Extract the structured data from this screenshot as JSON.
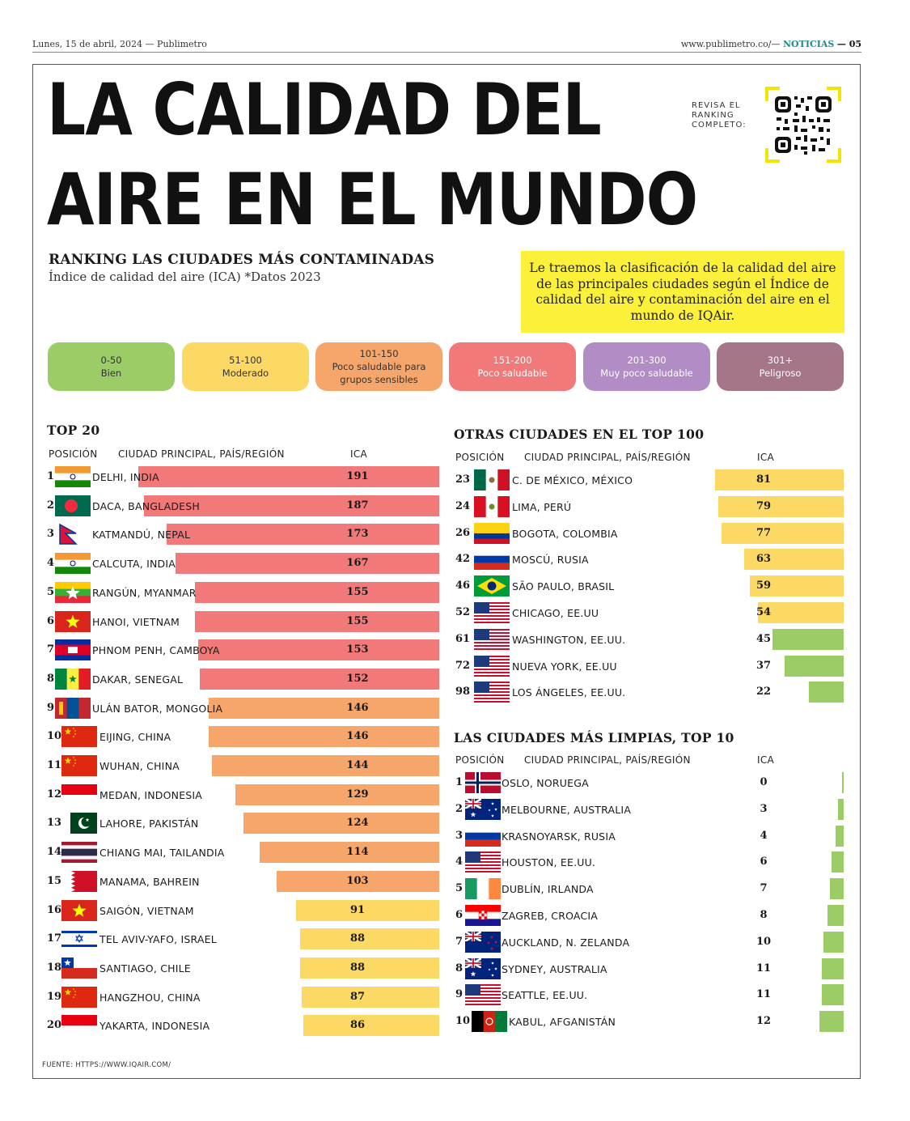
{
  "masthead": {
    "left": "Lunes, 15 de abril, 2024 — Publimetro",
    "url": "www.publimetro.co/—",
    "section": "NOTICIAS",
    "page": "— 05"
  },
  "title": {
    "line1": "LA CALIDAD DEL",
    "line2": "AIRE EN EL MUNDO"
  },
  "qr_label": "REVISA EL RANKING COMPLETO:",
  "subtitle": "RANKING LAS CIUDADES MÁS CONTAMINADAS",
  "subtitle2": "Índice de calidad del aire (ICA) *Datos 2023",
  "intro": "Le traemos la clasificación de la calidad del aire de las principales ciudades según el Índice de calidad del aire y contaminación del aire en el mundo de IQAir.",
  "colors": {
    "bien": "#9ccc65",
    "moderado": "#fcd964",
    "sensibles": "#f6a66a",
    "poco": "#f27979",
    "muy": "#b28cc4",
    "peligroso": "#a57689",
    "highlight": "#fbf03a"
  },
  "legend": [
    {
      "range": "0-50",
      "label": "Bien",
      "color": "#9ccc65",
      "text_color": "#333333"
    },
    {
      "range": "51-100",
      "label": "Moderado",
      "color": "#fcd964",
      "text_color": "#333333"
    },
    {
      "range": "101-150",
      "label": "Poco saludable para grupos sensibles",
      "color": "#f6a66a",
      "text_color": "#333333"
    },
    {
      "range": "151-200",
      "label": "Poco saludable",
      "color": "#f27979",
      "text_color": "#ffffff"
    },
    {
      "range": "201-300",
      "label": "Muy poco saludable",
      "color": "#b28cc4",
      "text_color": "#ffffff"
    },
    {
      "range": "301+",
      "label": "Peligroso",
      "color": "#a57689",
      "text_color": "#ffffff"
    }
  ],
  "source": "FUENTE: HTTPS://WWW.IQAIR.COM/",
  "chart_data": [
    {
      "type": "bar",
      "orientation": "horizontal",
      "title": "TOP 20",
      "headers": {
        "rank": "POSICIÓN",
        "city": "CIUDAD PRINCIPAL, PAÍS/REGIÓN",
        "value": "ICA"
      },
      "xlim": [
        0,
        200
      ],
      "rows": [
        {
          "rank": "1",
          "city": "DELHI, INDIA",
          "flag": "india",
          "value": 191
        },
        {
          "rank": "2",
          "city": "DACA, BANGLADESH",
          "flag": "bangladesh",
          "value": 187
        },
        {
          "rank": "3",
          "city": "KATMANDÚ, NEPAL",
          "flag": "nepal",
          "value": 173
        },
        {
          "rank": "4",
          "city": "CALCUTA, INDIA",
          "flag": "india",
          "value": 167
        },
        {
          "rank": "5",
          "city": "RANGÚN, MYANMAR",
          "flag": "myanmar",
          "value": 155
        },
        {
          "rank": "6",
          "city": "HANOI, VIETNAM",
          "flag": "vietnam",
          "value": 155
        },
        {
          "rank": "7",
          "city": "PHNOM PENH, CAMBOYA",
          "flag": "cambodia",
          "value": 153
        },
        {
          "rank": "8",
          "city": "DAKAR, SENEGAL",
          "flag": "senegal",
          "value": 152
        },
        {
          "rank": "9",
          "city": "ULÁN BATOR, MONGOLIA",
          "flag": "mongolia",
          "value": 146
        },
        {
          "rank": "10",
          "city": "EIJING, CHINA",
          "flag": "china",
          "value": 146
        },
        {
          "rank": "11",
          "city": "WUHAN, CHINA",
          "flag": "china",
          "value": 144
        },
        {
          "rank": "12",
          "city": "MEDAN, INDONESIA",
          "flag": "indonesia",
          "value": 129
        },
        {
          "rank": "13",
          "city": "LAHORE, PAKISTÁN",
          "flag": "pakistan",
          "value": 124
        },
        {
          "rank": "14",
          "city": "CHIANG MAI, TAILANDIA",
          "flag": "thailand",
          "value": 114
        },
        {
          "rank": "15",
          "city": "MANAMA, BAHREIN",
          "flag": "bahrain",
          "value": 103
        },
        {
          "rank": "16",
          "city": "SAIGÓN, VIETNAM",
          "flag": "vietnam",
          "value": 91
        },
        {
          "rank": "17",
          "city": "TEL AVIV-YAFO, ISRAEL",
          "flag": "israel",
          "value": 88
        },
        {
          "rank": "18",
          "city": "SANTIAGO, CHILE",
          "flag": "chile",
          "value": 88
        },
        {
          "rank": "19",
          "city": "HANGZHOU, CHINA",
          "flag": "china",
          "value": 87
        },
        {
          "rank": "20",
          "city": "YAKARTA, INDONESIA",
          "flag": "indonesia",
          "value": 86
        }
      ]
    },
    {
      "type": "bar",
      "orientation": "horizontal",
      "title": "OTRAS CIUDADES EN EL TOP 100",
      "headers": {
        "rank": "POSICIÓN",
        "city": "CIUDAD PRINCIPAL, PAÍS/REGIÓN",
        "value": "ICA"
      },
      "xlim": [
        0,
        200
      ],
      "rows": [
        {
          "rank": "23",
          "city": "C. DE MÉXICO, MÉXICO",
          "flag": "mexico",
          "value": 81
        },
        {
          "rank": "24",
          "city": "LIMA, PERÚ",
          "flag": "peru",
          "value": 79
        },
        {
          "rank": "26",
          "city": "BOGOTA, COLOMBIA",
          "flag": "colombia",
          "value": 77
        },
        {
          "rank": "42",
          "city": "MOSCÚ, RUSIA",
          "flag": "russia",
          "value": 63
        },
        {
          "rank": "46",
          "city": "SÃO PAULO, BRASIL",
          "flag": "brazil",
          "value": 59
        },
        {
          "rank": "52",
          "city": "CHICAGO, EE.UU",
          "flag": "usa",
          "value": 54
        },
        {
          "rank": "61",
          "city": "WASHINGTON, EE.UU.",
          "flag": "usa",
          "value": 45
        },
        {
          "rank": "72",
          "city": "NUEVA YORK, EE.UU",
          "flag": "usa",
          "value": 37
        },
        {
          "rank": "98",
          "city": "LOS ÁNGELES, EE.UU.",
          "flag": "usa",
          "value": 22
        }
      ]
    },
    {
      "type": "bar",
      "orientation": "horizontal",
      "title": "LAS CIUDADES MÁS LIMPIAS, TOP 10",
      "headers": {
        "rank": "POSICIÓN",
        "city": "CIUDAD PRINCIPAL, PAÍS/REGIÓN",
        "value": "ICA"
      },
      "xlim": [
        0,
        200
      ],
      "rows": [
        {
          "rank": "1",
          "city": "OSLO, NORUEGA",
          "flag": "norway",
          "value": 0
        },
        {
          "rank": "2",
          "city": "MELBOURNE, AUSTRALIA",
          "flag": "australia",
          "value": 3
        },
        {
          "rank": "3",
          "city": "KRASNOYARSK, RUSIA",
          "flag": "russia",
          "value": 4
        },
        {
          "rank": "4",
          "city": "HOUSTON, EE.UU.",
          "flag": "usa",
          "value": 6
        },
        {
          "rank": "5",
          "city": "DUBLÍN, IRLANDA",
          "flag": "ireland",
          "value": 7
        },
        {
          "rank": "6",
          "city": "ZAGREB, CROACIA",
          "flag": "croatia",
          "value": 8
        },
        {
          "rank": "7",
          "city": "AUCKLAND, N. ZELANDA",
          "flag": "newzealand",
          "value": 10
        },
        {
          "rank": "8",
          "city": "SYDNEY, AUSTRALIA",
          "flag": "australia",
          "value": 11
        },
        {
          "rank": "9",
          "city": "SEATTLE, EE.UU.",
          "flag": "usa",
          "value": 11
        },
        {
          "rank": "10",
          "city": "KABUL, AFGANISTÁN",
          "flag": "afghanistan",
          "value": 12
        }
      ]
    }
  ]
}
